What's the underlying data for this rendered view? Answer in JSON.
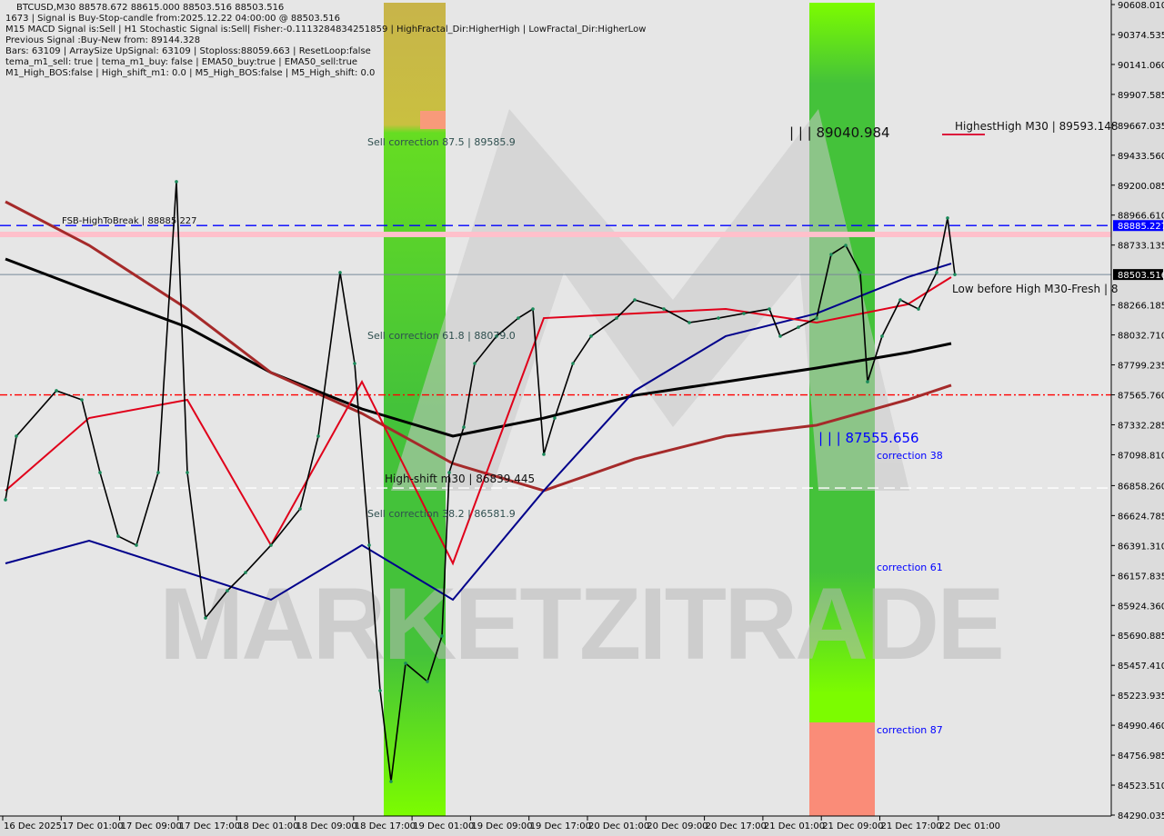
{
  "header": {
    "symbol_line": "BTCUSD,M30  88578.672 88615.000 88503.516 88503.516",
    "lines": [
      "1673 | Signal is Buy-Stop-candle from:2025.12.22 04:00:00 @ 88503.516",
      "M15 MACD Signal is:Sell | H1 Stochastic Signal is:Sell| Fisher:-0.1113284834251859 | HighFractal_Dir:HigherHigh | LowFractal_Dir:HigherLow",
      "Previous Signal :Buy-New from: 89144.328",
      "Bars: 63109 | ArraySize UpSignal: 63109 | Stoploss:88059.663 | ResetLoop:false",
      "tema_m1_sell: true | tema_m1_buy: false | EMA50_buy:true | EMA50_sell:true",
      "M1_High_BOS:false | High_shift_m1: 0.0 | M5_High_BOS:false | M5_High_shift: 0.0"
    ]
  },
  "watermark": "MARKETZITRADE",
  "chart_data": {
    "type": "line",
    "symbol": "BTCUSD",
    "timeframe": "M30",
    "ylim": [
      84290.035,
      90608.01
    ],
    "y_ticks": [
      "90608.010",
      "90374.535",
      "90141.060",
      "89907.585",
      "89667.035",
      "89433.560",
      "89200.085",
      "88966.610",
      "88733.135",
      "88266.185",
      "88032.710",
      "87799.235",
      "87565.760",
      "87332.285",
      "87098.810",
      "86858.260",
      "86624.785",
      "86391.310",
      "86157.835",
      "85924.360",
      "85690.885",
      "85457.410",
      "85223.935",
      "84990.460",
      "84756.985",
      "84523.510",
      "84290.035"
    ],
    "x_ticks": [
      "16 Dec 2025",
      "17 Dec 01:00",
      "17 Dec 09:00",
      "17 Dec 17:00",
      "18 Dec 01:00",
      "18 Dec 09:00",
      "18 Dec 17:00",
      "19 Dec 01:00",
      "19 Dec 09:00",
      "19 Dec 17:00",
      "20 Dec 01:00",
      "20 Dec 09:00",
      "20 Dec 17:00",
      "21 Dec 01:00",
      "21 Dec 09:00",
      "21 Dec 17:00",
      "22 Dec 01:00"
    ],
    "price_labels": {
      "fsb": "88885.227",
      "current": "88503.516"
    },
    "price": {
      "t": [
        "2025-12-16T17:30",
        "2025-12-16T19:00",
        "2025-12-17T00:30",
        "2025-12-17T04:00",
        "2025-12-17T06:30",
        "2025-12-17T09:00",
        "2025-12-17T11:30",
        "2025-12-17T14:30",
        "2025-12-17T17:00",
        "2025-12-17T18:30",
        "2025-12-17T21:00",
        "2025-12-18T00:00",
        "2025-12-18T02:30",
        "2025-12-18T06:00",
        "2025-12-18T10:00",
        "2025-12-18T12:30",
        "2025-12-18T15:30",
        "2025-12-18T17:30",
        "2025-12-18T19:30",
        "2025-12-18T21:00",
        "2025-12-18T22:30",
        "2025-12-19T00:30",
        "2025-12-19T03:30",
        "2025-12-19T05:30",
        "2025-12-19T06:30",
        "2025-12-19T08:30",
        "2025-12-19T10:00",
        "2025-12-19T13:00",
        "2025-12-19T16:00",
        "2025-12-19T18:00",
        "2025-12-19T19:30",
        "2025-12-19T21:00",
        "2025-12-19T23:30",
        "2025-12-20T02:00",
        "2025-12-20T05:30",
        "2025-12-20T08:00",
        "2025-12-20T12:00",
        "2025-12-20T15:30",
        "2025-12-20T19:30",
        "2025-12-20T23:00",
        "2025-12-21T02:30",
        "2025-12-21T04:00",
        "2025-12-21T06:30",
        "2025-12-21T09:00",
        "2025-12-21T11:00",
        "2025-12-21T13:00",
        "2025-12-21T15:00",
        "2025-12-21T16:00",
        "2025-12-21T18:00",
        "2025-12-21T20:30",
        "2025-12-21T23:00",
        "2025-12-22T01:30",
        "2025-12-22T03:00",
        "2025-12-22T04:00"
      ],
      "close": [
        86748,
        87244,
        87598,
        87527,
        86960,
        86464,
        86394,
        86960,
        89227,
        86960,
        85827,
        86039,
        86181,
        86394,
        86677,
        87244,
        88519,
        87810,
        86394,
        85260,
        84552,
        85473,
        85331,
        85686,
        86960,
        87314,
        87810,
        88023,
        88164,
        88235,
        87102,
        87385,
        87810,
        88023,
        88164,
        88306,
        88235,
        88129,
        88164,
        88200,
        88235,
        88023,
        88093,
        88164,
        88660,
        88731,
        88519,
        87668,
        88023,
        88306,
        88235,
        88519,
        88944,
        88503.516
      ]
    },
    "ma_times": [
      "2025-12-16T17:30",
      "2025-12-17T05:00",
      "2025-12-17T18:30",
      "2025-12-18T06:00",
      "2025-12-18T18:30",
      "2025-12-19T07:00",
      "2025-12-19T19:30",
      "2025-12-20T08:00",
      "2025-12-20T20:30",
      "2025-12-21T09:00",
      "2025-12-21T21:30",
      "2025-12-22T03:30"
    ],
    "series": [
      {
        "color": "#000000",
        "values": [
          88625,
          88377,
          88093,
          87739,
          87456,
          87244,
          87385,
          87562,
          87668,
          87775,
          87895,
          87966
        ]
      },
      {
        "color": "#a52a2a",
        "values": [
          89071,
          88731,
          88235,
          87739,
          87421,
          87031,
          86819,
          87066,
          87244,
          87329,
          87527,
          87641
        ]
      },
      {
        "color": "#00008b",
        "values": [
          86252,
          86429,
          86181,
          85969,
          86394,
          85969,
          86819,
          87598,
          88023,
          88200,
          88483,
          88589
        ]
      },
      {
        "color": "#e0001a",
        "values": [
          86819,
          87385,
          87527,
          86394,
          87668,
          86252,
          88164,
          88200,
          88235,
          88129,
          88271,
          88483
        ]
      }
    ],
    "levels": [
      {
        "name": "fsb-high-to-break",
        "price": 88885.227,
        "color": "#0000ff",
        "style": "dash"
      },
      {
        "name": "pink-band",
        "price": 88816,
        "color": "#ffc0cb",
        "style": "band"
      },
      {
        "name": "current-price",
        "price": 88503.516,
        "color": "#778899",
        "style": "solid"
      },
      {
        "name": "red-level",
        "price": 87565.76,
        "color": "#ff0000",
        "style": "dashdot"
      },
      {
        "name": "high-shift",
        "price": 86839.445,
        "color": "#ffffff",
        "style": "dash"
      }
    ],
    "zones": [
      {
        "from": "2025-12-18T21:30",
        "to": "2025-12-19T06:00"
      },
      {
        "from": "2025-12-21T08:00",
        "to": "2025-12-21T17:00"
      }
    ],
    "annotations": {
      "sell_875": "Sell correction 87.5 | 89585.9",
      "sell_618": "Sell correction 61.8 | 88079.0",
      "sell_382": "Sell correction 38.2 | 86581.9",
      "high_shift": "High-shift m30  | 86839.445",
      "fsb": "FSB-HighToBreak | 88885.227",
      "level_high": "| | | 89040.984",
      "level_low": "| | | 87555.656",
      "corr38": "correction 38",
      "corr61": "correction 61",
      "corr87": "correction 87",
      "highest_high": "HighestHigh   M30 | 89593.148",
      "low_before_high": "Low before High   M30-Fresh | 8"
    }
  }
}
